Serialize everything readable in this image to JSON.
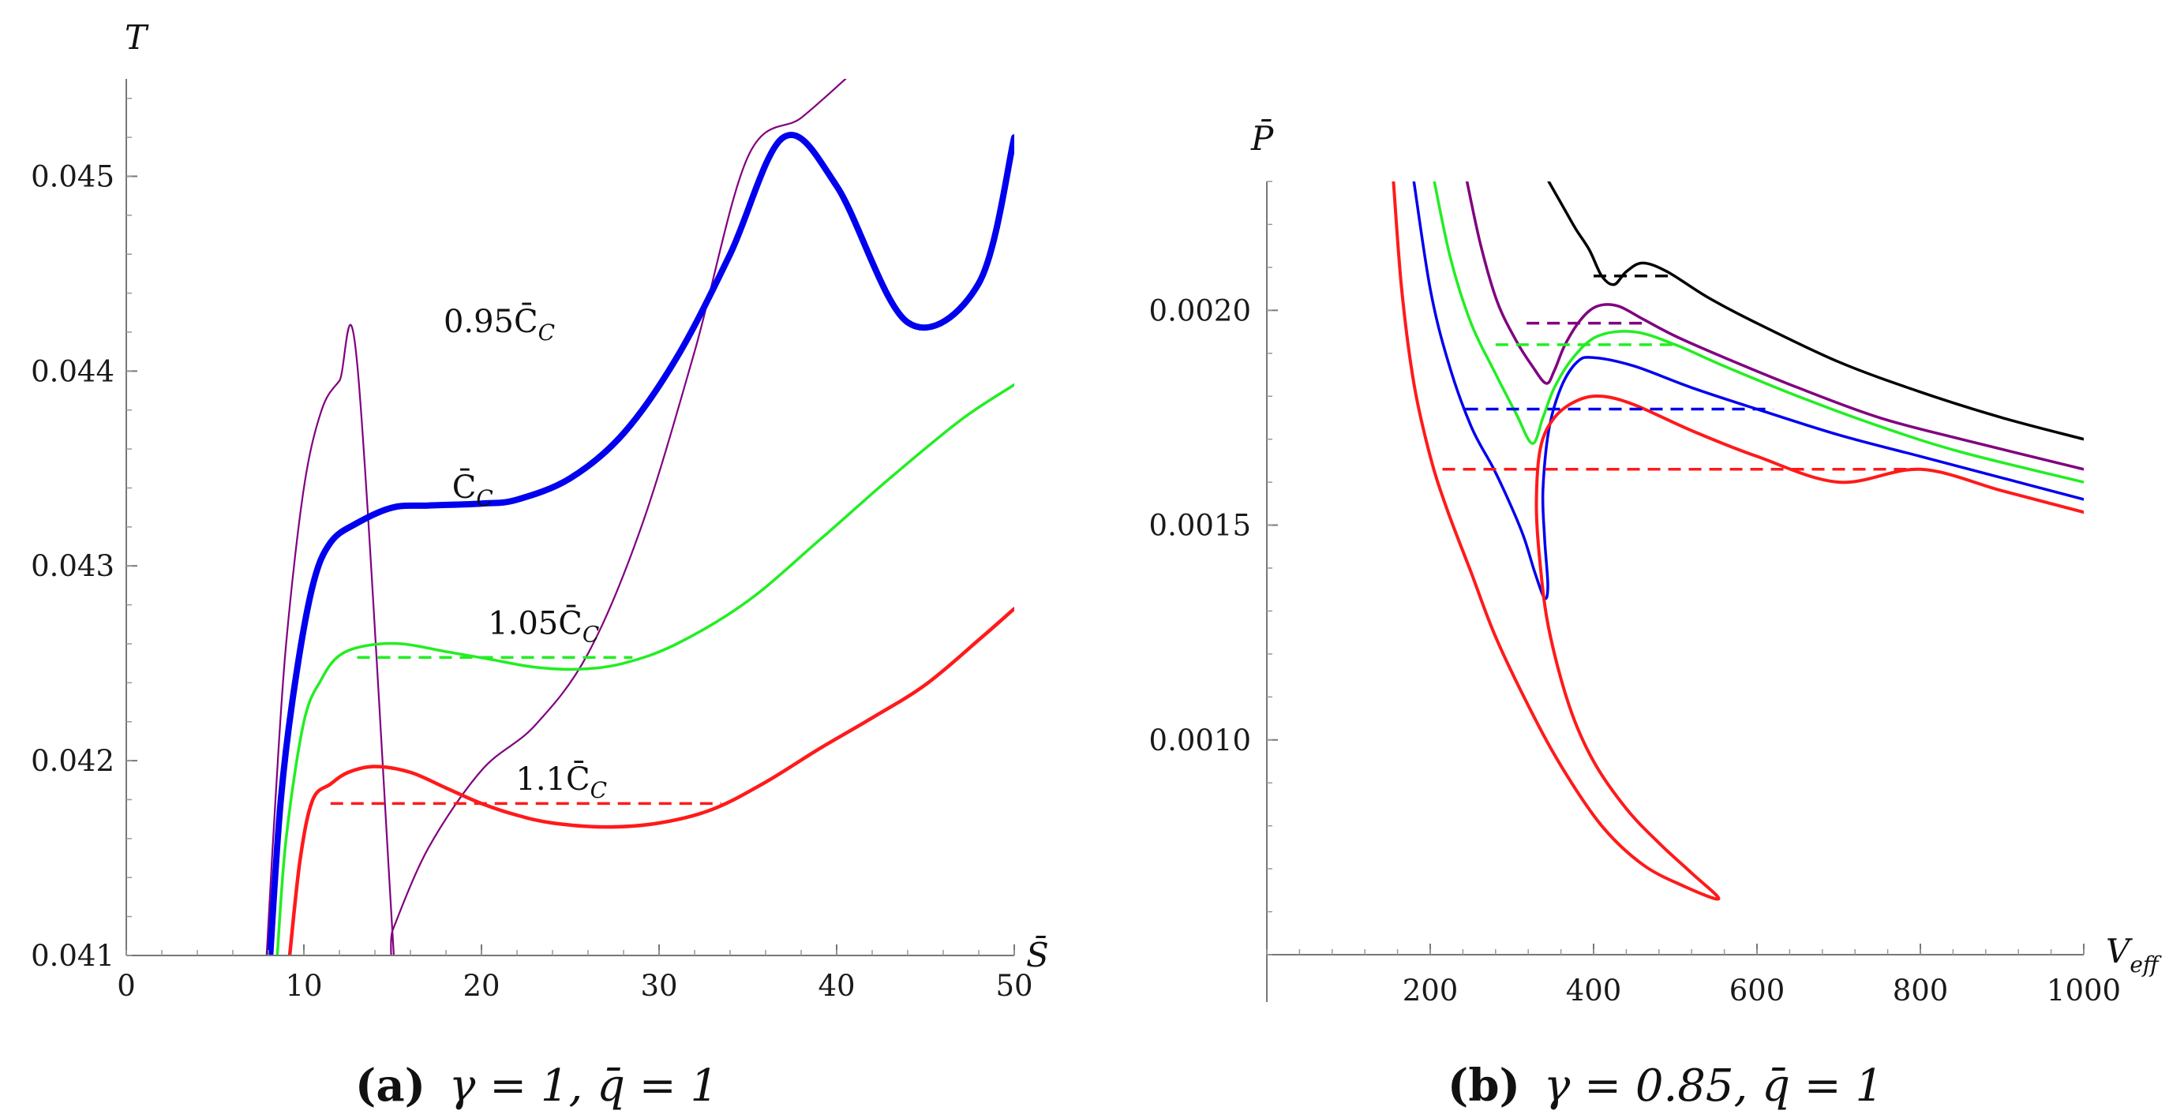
{
  "panels": [
    {
      "id": "a",
      "caption": {
        "tag": "(a)",
        "text": "γ = 1, q̄ = 1"
      },
      "chart_data": {
        "type": "line",
        "xlabel": "S̄",
        "ylabel": "T",
        "xlim": [
          0,
          50
        ],
        "ylim": [
          0.041,
          0.0455
        ],
        "x_ticks": [
          0,
          10,
          20,
          30,
          40,
          50
        ],
        "x_tick_labels": [
          "0",
          "10",
          "20",
          "30",
          "40",
          "50"
        ],
        "y_ticks": [
          0.041,
          0.042,
          0.043,
          0.044,
          0.045
        ],
        "y_tick_labels": [
          "0.041",
          "0.042",
          "0.043",
          "0.044",
          "0.045"
        ],
        "series": [
          {
            "name": "0.95C̄C",
            "label_main": "0.95C̄",
            "label_sub": "C",
            "color": "#800080",
            "width": 2.2,
            "label_at": [
              21,
              0.0442
            ],
            "points": [
              [
                7.9,
                0.041
              ],
              [
                8.4,
                0.0418
              ],
              [
                9,
                0.0426
              ],
              [
                10,
                0.0434
              ],
              [
                11,
                0.0438
              ],
              [
                12,
                0.04395
              ],
              [
                13,
                0.04404
              ],
              [
                15,
                0.0411
              ],
              [
                15,
                0.04113
              ],
              [
                17,
                0.04155
              ],
              [
                20,
                0.04195
              ],
              [
                23,
                0.04218
              ],
              [
                26,
                0.04255
              ],
              [
                29,
                0.0432
              ],
              [
                32,
                0.0441
              ],
              [
                35,
                0.0451
              ],
              [
                38,
                0.0453
              ],
              [
                40.5,
                0.0455
              ]
            ]
          },
          {
            "name": "C̄C",
            "label_main": "C̄",
            "label_sub": "C",
            "color": "#0000ee",
            "width": 8,
            "label_at": [
              19.5,
              0.04335
            ],
            "points": [
              [
                8.1,
                0.041
              ],
              [
                8.7,
                0.0418
              ],
              [
                9.5,
                0.0424
              ],
              [
                10.5,
                0.0429
              ],
              [
                11.5,
                0.04312
              ],
              [
                13,
                0.04322
              ],
              [
                15,
                0.0433
              ],
              [
                17,
                0.04331
              ],
              [
                20,
                0.04332
              ],
              [
                22,
                0.04334
              ],
              [
                25,
                0.04345
              ],
              [
                28,
                0.04368
              ],
              [
                31,
                0.04407
              ],
              [
                34,
                0.0446
              ],
              [
                37,
                0.0452
              ],
              [
                40,
                0.04495
              ],
              [
                44,
                0.04425
              ],
              [
                48,
                0.04445
              ],
              [
                50,
                0.0452
              ]
            ]
          },
          {
            "name": "1.05C̄C",
            "label_main": "1.05C̄",
            "label_sub": "C",
            "color": "#22ee22",
            "width": 3.5,
            "label_at": [
              23.5,
              0.04265
            ],
            "points": [
              [
                8.5,
                0.041
              ],
              [
                9,
                0.0416
              ],
              [
                10,
                0.0422
              ],
              [
                11,
                0.04242
              ],
              [
                12,
                0.04254
              ],
              [
                13.5,
                0.04259
              ],
              [
                15.5,
                0.0426
              ],
              [
                18,
                0.04256
              ],
              [
                20.5,
                0.04252
              ],
              [
                23,
                0.04248
              ],
              [
                25.5,
                0.04247
              ],
              [
                28,
                0.0425
              ],
              [
                31,
                0.0426
              ],
              [
                35,
                0.04282
              ],
              [
                39,
                0.04313
              ],
              [
                43,
                0.04345
              ],
              [
                47,
                0.04375
              ],
              [
                50,
                0.04393
              ]
            ]
          },
          {
            "name": "1.1C̄C",
            "label_main": "1.1C̄",
            "label_sub": "C",
            "color": "#ff1a1a",
            "width": 4.5,
            "label_at": [
              24.5,
              0.04185
            ],
            "points": [
              [
                9.2,
                0.041
              ],
              [
                9.8,
                0.0415
              ],
              [
                10.5,
                0.0418
              ],
              [
                11.5,
                0.04188
              ],
              [
                12.5,
                0.04194
              ],
              [
                14,
                0.04197
              ],
              [
                16,
                0.04194
              ],
              [
                18,
                0.04186
              ],
              [
                20,
                0.04178
              ],
              [
                22,
                0.04172
              ],
              [
                24,
                0.04168
              ],
              [
                27,
                0.04166
              ],
              [
                30,
                0.04168
              ],
              [
                33,
                0.04175
              ],
              [
                36,
                0.04189
              ],
              [
                39,
                0.04206
              ],
              [
                42,
                0.04222
              ],
              [
                45,
                0.04239
              ],
              [
                48,
                0.04262
              ],
              [
                50,
                0.04278
              ]
            ]
          }
        ],
        "isobars": [
          {
            "color": "#22ee22",
            "y": 0.04253,
            "x_from": 13,
            "x_to": 28.5
          },
          {
            "color": "#ff1a1a",
            "y": 0.04178,
            "x_from": 11.5,
            "x_to": 33.5
          }
        ]
      }
    },
    {
      "id": "b",
      "caption": {
        "tag": "(b)",
        "text": "γ = 0.85, q̄ = 1"
      },
      "chart_data": {
        "type": "line",
        "xlabel": "V",
        "xlabel_sub": "eff",
        "ylabel": "P̄",
        "xlim": [
          0,
          1000
        ],
        "ylim": [
          0.0005,
          0.0023
        ],
        "x_ticks": [
          200,
          400,
          600,
          800,
          1000
        ],
        "x_tick_labels": [
          "200",
          "400",
          "600",
          "800",
          "1000"
        ],
        "y_ticks": [
          0.001,
          0.0015,
          0.002
        ],
        "y_tick_labels": [
          "0.0010",
          "0.0015",
          "0.0020"
        ],
        "series": [
          {
            "name": "black",
            "color": "#000000",
            "width": 3.5,
            "points": [
              [
                345,
                0.0023
              ],
              [
                360,
                0.00225
              ],
              [
                378,
                0.00219
              ],
              [
                395,
                0.00214
              ],
              [
                410,
                0.00208
              ],
              [
                425,
                0.00206
              ],
              [
                440,
                0.00209
              ],
              [
                460,
                0.00211
              ],
              [
                490,
                0.00209
              ],
              [
                540,
                0.00203
              ],
              [
                600,
                0.00197
              ],
              [
                700,
                0.00188
              ],
              [
                800,
                0.00181
              ],
              [
                900,
                0.00175
              ],
              [
                1000,
                0.0017
              ]
            ]
          },
          {
            "name": "purple",
            "color": "#800080",
            "width": 3.5,
            "points": [
              [
                245,
                0.0023
              ],
              [
                262,
                0.00215
              ],
              [
                282,
                0.00202
              ],
              [
                305,
                0.00193
              ],
              [
                325,
                0.00187
              ],
              [
                342,
                0.00183
              ],
              [
                352,
                0.00186
              ],
              [
                365,
                0.00192
              ],
              [
                385,
                0.00198
              ],
              [
                405,
                0.00201
              ],
              [
                430,
                0.00201
              ],
              [
                460,
                0.00198
              ],
              [
                500,
                0.00194
              ],
              [
                560,
                0.00189
              ],
              [
                650,
                0.00182
              ],
              [
                750,
                0.00175
              ],
              [
                850,
                0.0017
              ],
              [
                1000,
                0.00163
              ]
            ]
          },
          {
            "name": "green",
            "color": "#22ee22",
            "width": 3.5,
            "points": [
              [
                205,
                0.0023
              ],
              [
                225,
                0.00212
              ],
              [
                250,
                0.00197
              ],
              [
                278,
                0.00186
              ],
              [
                305,
                0.00176
              ],
              [
                325,
                0.00169
              ],
              [
                338,
                0.00175
              ],
              [
                352,
                0.00182
              ],
              [
                375,
                0.00189
              ],
              [
                405,
                0.00194
              ],
              [
                450,
                0.00195
              ],
              [
                500,
                0.00192
              ],
              [
                560,
                0.00187
              ],
              [
                650,
                0.0018
              ],
              [
                750,
                0.00173
              ],
              [
                850,
                0.00167
              ],
              [
                1000,
                0.0016
              ]
            ]
          },
          {
            "name": "blue",
            "color": "#0000ee",
            "width": 3.5,
            "points": [
              [
                180,
                0.0023
              ],
              [
                200,
                0.00205
              ],
              [
                222,
                0.00188
              ],
              [
                250,
                0.00173
              ],
              [
                278,
                0.00163
              ],
              [
                300,
                0.00154
              ],
              [
                315,
                0.00147
              ],
              [
                328,
                0.00139
              ],
              [
                340,
                0.00133
              ],
              [
                344,
                0.00136
              ],
              [
                340,
                0.00147
              ],
              [
                338,
                0.00158
              ],
              [
                345,
                0.00172
              ],
              [
                360,
                0.00182
              ],
              [
                380,
                0.00188
              ],
              [
                400,
                0.00189
              ],
              [
                450,
                0.00187
              ],
              [
                520,
                0.00182
              ],
              [
                600,
                0.00177
              ],
              [
                700,
                0.00171
              ],
              [
                800,
                0.00166
              ],
              [
                900,
                0.00161
              ],
              [
                1000,
                0.00156
              ]
            ]
          },
          {
            "name": "red",
            "color": "#ff1a1a",
            "width": 4,
            "points": [
              [
                155,
                0.0023
              ],
              [
                165,
                0.00205
              ],
              [
                180,
                0.00183
              ],
              [
                200,
                0.00166
              ],
              [
                220,
                0.00154
              ],
              [
                250,
                0.00139
              ],
              [
                280,
                0.00124
              ],
              [
                320,
                0.00108
              ],
              [
                360,
                0.00094
              ],
              [
                410,
                0.0008
              ],
              [
                460,
                0.00071
              ],
              [
                510,
                0.00066
              ],
              [
                553,
                0.00063
              ],
              [
                520,
                0.00069
              ],
              [
                480,
                0.00076
              ],
              [
                440,
                0.00084
              ],
              [
                400,
                0.00095
              ],
              [
                370,
                0.00108
              ],
              [
                345,
                0.00126
              ],
              [
                334,
                0.00142
              ],
              [
                330,
                0.00155
              ],
              [
                335,
                0.00168
              ],
              [
                352,
                0.00175
              ],
              [
                380,
                0.00179
              ],
              [
                410,
                0.0018
              ],
              [
                450,
                0.00178
              ],
              [
                520,
                0.00172
              ],
              [
                600,
                0.00166
              ],
              [
                700,
                0.0016
              ],
              [
                800,
                0.00163
              ],
              [
                900,
                0.00158
              ],
              [
                1000,
                0.00153
              ]
            ]
          }
        ],
        "isobars": [
          {
            "color": "#000000",
            "y": 0.00208,
            "x_from": 400,
            "x_to": 500
          },
          {
            "color": "#800080",
            "y": 0.00197,
            "x_from": 318,
            "x_to": 460
          },
          {
            "color": "#22ee22",
            "y": 0.00192,
            "x_from": 280,
            "x_to": 500
          },
          {
            "color": "#0000ee",
            "y": 0.00177,
            "x_from": 243,
            "x_to": 620
          },
          {
            "color": "#ff1a1a",
            "y": 0.00163,
            "x_from": 215,
            "x_to": 785
          }
        ]
      }
    }
  ]
}
